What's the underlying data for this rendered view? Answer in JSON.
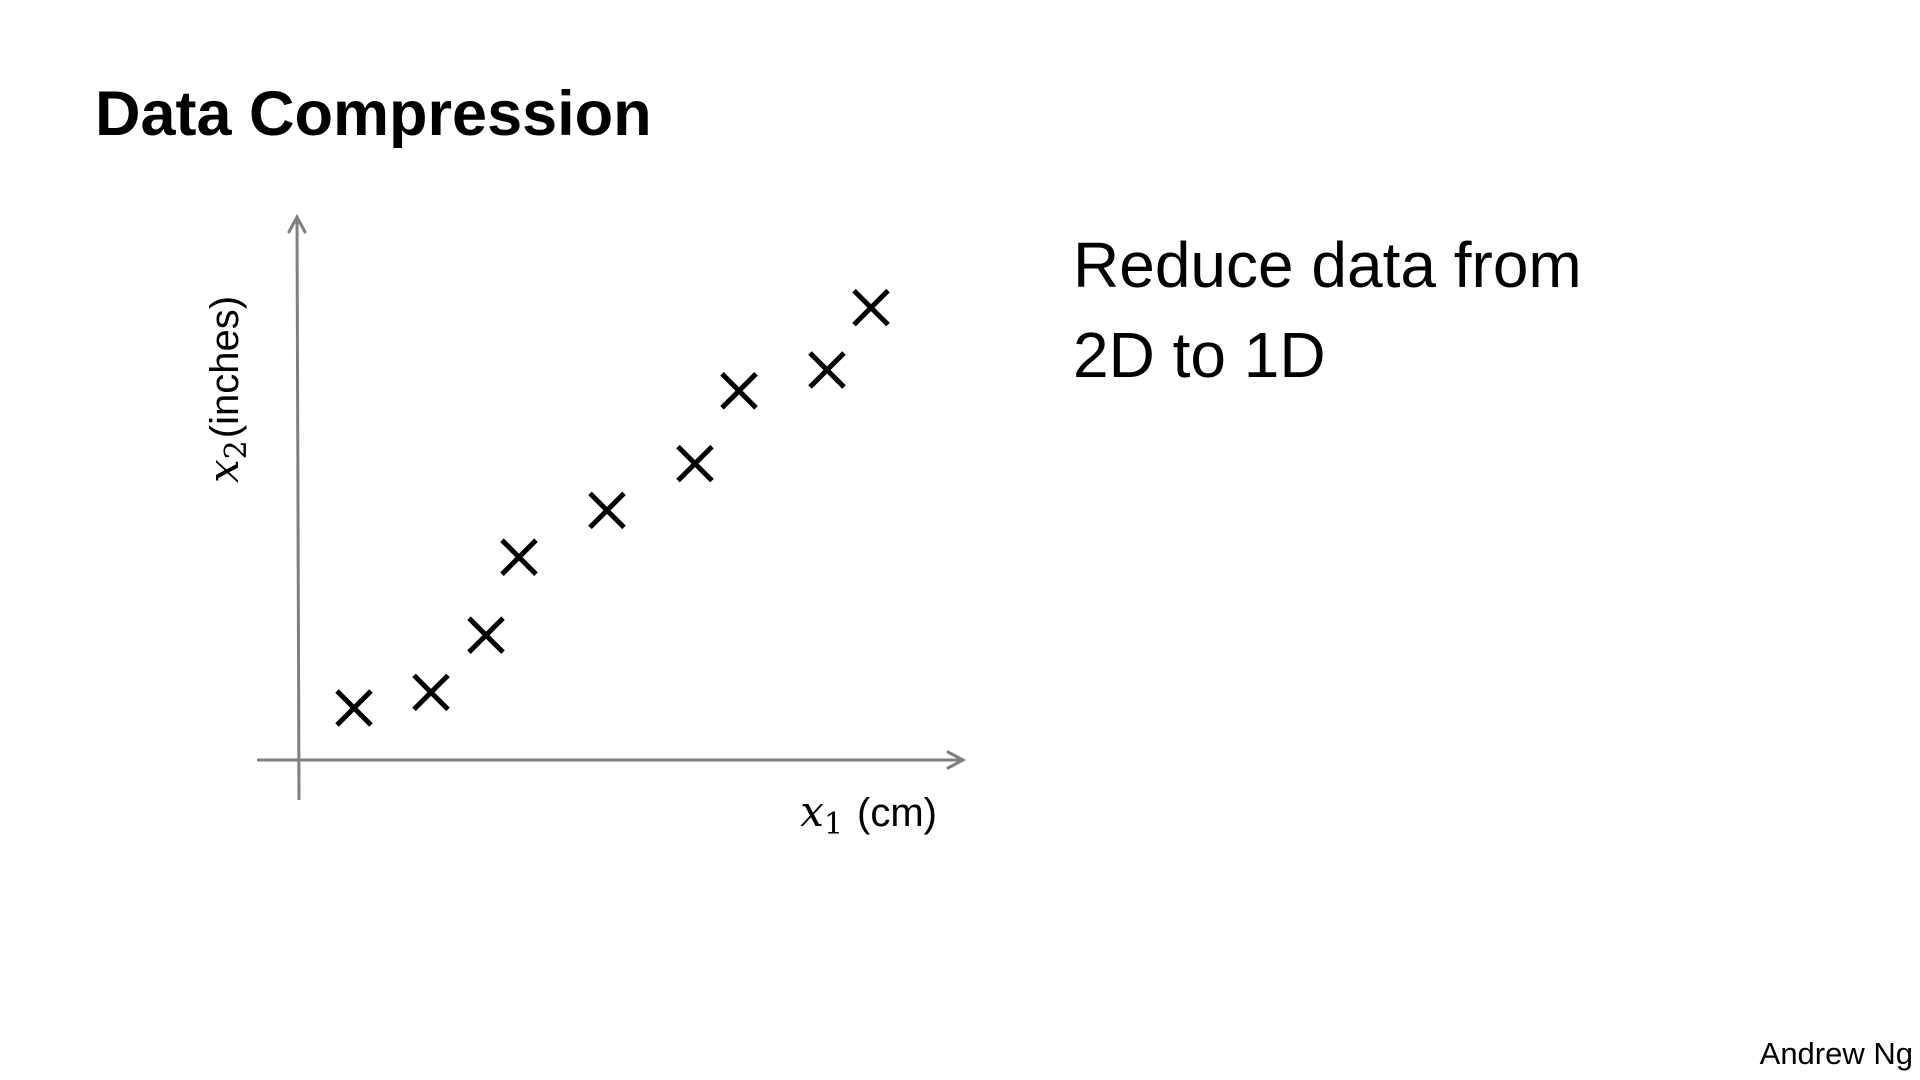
{
  "title": "Data Compression",
  "body_lines": [
    "Reduce data from",
    "2D to 1D"
  ],
  "footer": "Andrew Ng",
  "chart_data": {
    "type": "scatter",
    "title": "",
    "x_axis": {
      "symbol": "x",
      "subscript": "1",
      "unit": "(cm)"
    },
    "y_axis": {
      "symbol": "x",
      "subscript": "2",
      "unit": "(inches)"
    },
    "grid": false,
    "ticks": false,
    "marker": "x",
    "points": [
      {
        "x": 5,
        "y": 10
      },
      {
        "x": 12,
        "y": 13
      },
      {
        "x": 17,
        "y": 24
      },
      {
        "x": 20,
        "y": 39
      },
      {
        "x": 28,
        "y": 48
      },
      {
        "x": 36,
        "y": 57
      },
      {
        "x": 40,
        "y": 71
      },
      {
        "x": 48,
        "y": 75
      },
      {
        "x": 52,
        "y": 87
      }
    ],
    "xlim": [
      0,
      60
    ],
    "ylim": [
      0,
      100
    ]
  },
  "colors": {
    "text": "#000000",
    "axis": "#7f7f7f",
    "marker": "#000000",
    "background": "#ffffff"
  }
}
